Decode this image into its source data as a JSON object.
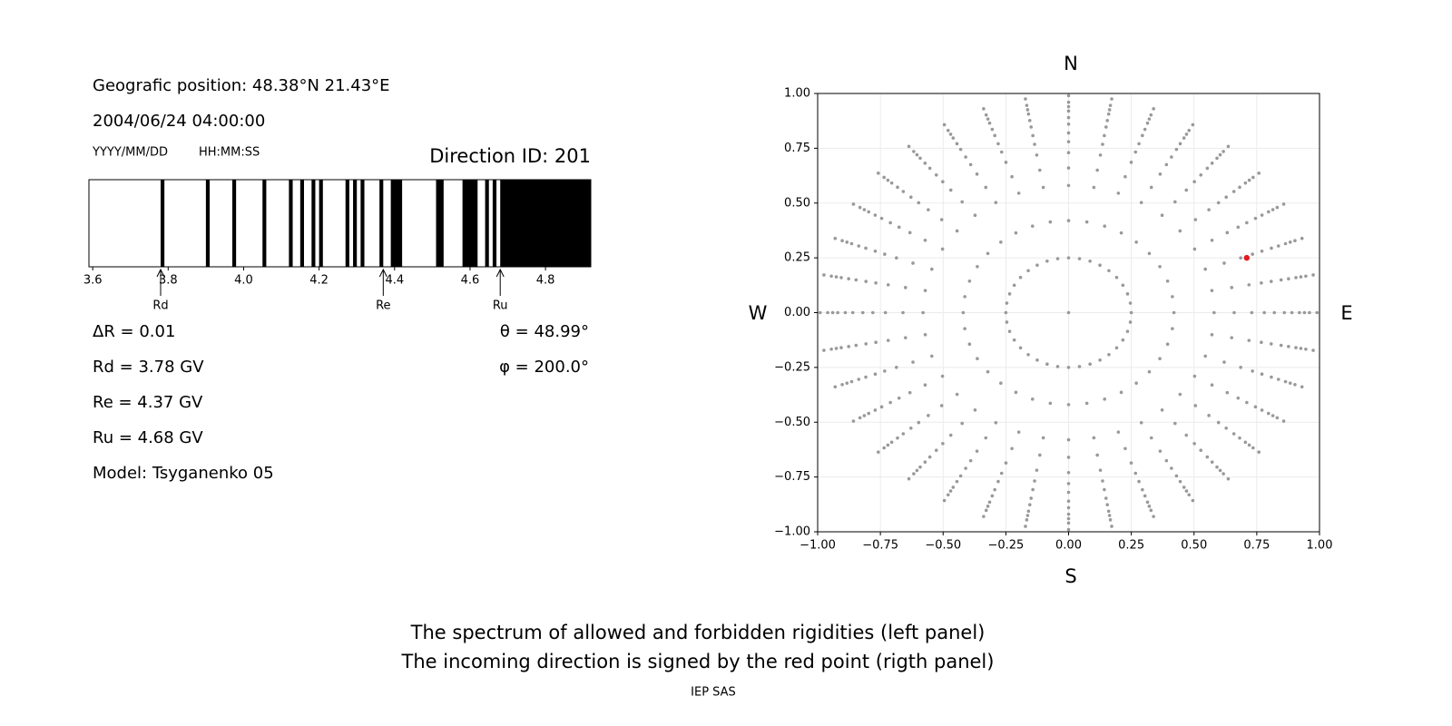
{
  "chart_data": [
    {
      "type": "spectrum",
      "title": "Direction ID: 201",
      "annotations": {
        "position": "Geografic position: 48.38°N 21.43°E",
        "datetime": "2004/06/24 04:00:00",
        "date_format": "YYYY/MM/DD",
        "time_format": "HH:MM:SS",
        "delta": "ΔR = 0.01",
        "theta": "θ = 48.99°",
        "phi": "φ = 200.0°",
        "rd": "Rd = 3.78 GV",
        "re": "Re = 4.37 GV",
        "ru": "Ru = 4.68 GV",
        "model": "Model: Tsyganenko 05"
      },
      "forbidden": [
        [
          3.78,
          3.79
        ],
        [
          3.9,
          3.91
        ],
        [
          3.97,
          3.98
        ],
        [
          4.05,
          4.06
        ],
        [
          4.12,
          4.13
        ],
        [
          4.15,
          4.16
        ],
        [
          4.18,
          4.19
        ],
        [
          4.2,
          4.21
        ],
        [
          4.27,
          4.28
        ],
        [
          4.29,
          4.3
        ],
        [
          4.31,
          4.32
        ],
        [
          4.36,
          4.37
        ],
        [
          4.39,
          4.42
        ],
        [
          4.51,
          4.53
        ],
        [
          4.58,
          4.62
        ],
        [
          4.64,
          4.65
        ],
        [
          4.66,
          4.67
        ],
        [
          4.68,
          4.92
        ]
      ],
      "color": "#000000",
      "xlim": [
        3.59,
        4.92
      ],
      "xticks": [
        3.6,
        3.8,
        {
          "value": 4.0,
          "label": "4.0"
        },
        4.2,
        4.4,
        4.6,
        4.8
      ],
      "markers": [
        {
          "label": "Rd",
          "value": 3.78
        },
        {
          "label": "Re",
          "value": 4.37
        },
        {
          "label": "Ru",
          "value": 4.68
        }
      ]
    },
    {
      "type": "scatter",
      "top_label": "N",
      "bottom_label": "S",
      "left_label": "W",
      "right_label": "E",
      "grid_points": {
        "color": "#999999",
        "azimuths": [
          0,
          10,
          20,
          30,
          40,
          50,
          60,
          70,
          80,
          90,
          100,
          110,
          120,
          130,
          140,
          150,
          160,
          170,
          180,
          190,
          200,
          210,
          220,
          230,
          240,
          250,
          260,
          270,
          280,
          290,
          300,
          310,
          320,
          330,
          340,
          350
        ],
        "radii": [
          0.25,
          0.42,
          0.58,
          0.66,
          0.73,
          0.78,
          0.82,
          0.86,
          0.89,
          0.92,
          0.94,
          0.96,
          0.99
        ]
      },
      "center_point": {
        "x": 0,
        "y": 0,
        "color": "#999999"
      },
      "highlight": {
        "x": 0.71,
        "y": 0.25,
        "color": "#e31a1c"
      },
      "xlim": [
        -1,
        1
      ],
      "ylim": [
        -1,
        1
      ],
      "xticks": [
        {
          "value": -1,
          "label": "−1.00"
        },
        {
          "value": -0.75,
          "label": "−0.75"
        },
        {
          "value": -0.5,
          "label": "−0.50"
        },
        {
          "value": -0.25,
          "label": "−0.25"
        },
        {
          "value": 0,
          "label": "0.00"
        },
        {
          "value": 0.25,
          "label": "0.25"
        },
        {
          "value": 0.5,
          "label": "0.50"
        },
        {
          "value": 0.75,
          "label": "0.75"
        },
        {
          "value": 1,
          "label": "1.00"
        }
      ],
      "yticks": [
        {
          "value": -1,
          "label": "−1.00"
        },
        {
          "value": -0.75,
          "label": "−0.75"
        },
        {
          "value": -0.5,
          "label": "−0.50"
        },
        {
          "value": -0.25,
          "label": "−0.25"
        },
        {
          "value": 0,
          "label": "0.00"
        },
        {
          "value": 0.25,
          "label": "0.25"
        },
        {
          "value": 0.5,
          "label": "0.50"
        },
        {
          "value": 0.75,
          "label": "0.75"
        },
        {
          "value": 1,
          "label": "1.00"
        }
      ],
      "grid": true
    }
  ],
  "footer": {
    "captions": [
      "The spectrum of allowed and forbidden rigidities (left panel)",
      "The incoming direction is signed by the red point (rigth panel)"
    ],
    "credit": "IEP SAS"
  }
}
